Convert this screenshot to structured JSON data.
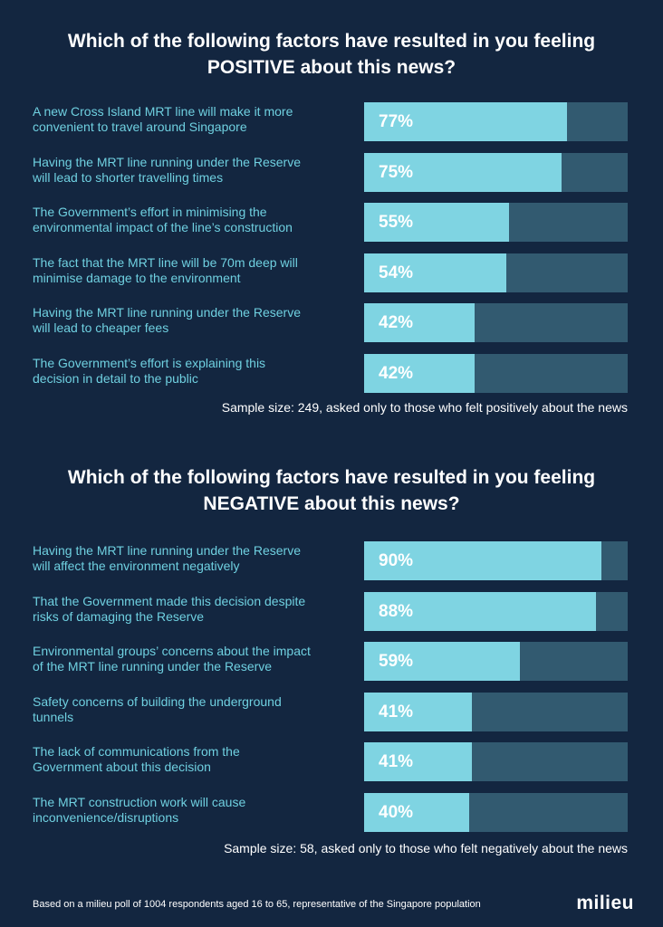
{
  "chart_data": [
    {
      "type": "bar",
      "orientation": "horizontal",
      "title_lines": [
        "Which of the following factors have resulted in you feeling",
        "POSITIVE about this news?"
      ],
      "categories": [
        [
          "A new Cross Island MRT line will make it more",
          "convenient to travel around Singapore"
        ],
        [
          "Having the MRT line running under the Reserve",
          "will lead to shorter travelling times"
        ],
        [
          "The Government’s effort in minimising the",
          "environmental impact of the line’s construction"
        ],
        [
          "The fact that the MRT line will be 70m deep will",
          "minimise damage to the environment"
        ],
        [
          "Having the MRT line running under the Reserve",
          "will lead to cheaper fees"
        ],
        [
          "The Government’s effort is explaining this",
          "decision in detail to the public"
        ]
      ],
      "values": [
        77,
        75,
        55,
        54,
        42,
        42
      ],
      "value_labels": [
        "77%",
        "75%",
        "55%",
        "54%",
        "42%",
        "42%"
      ],
      "xlim": [
        0,
        100
      ],
      "note": "Sample size: 249, asked only to those who felt positively about the news"
    },
    {
      "type": "bar",
      "orientation": "horizontal",
      "title_lines": [
        "Which of the following factors have resulted in you feeling",
        "NEGATIVE about this news?"
      ],
      "categories": [
        [
          "Having the MRT line running under the Reserve",
          "will affect the environment negatively"
        ],
        [
          "That the Government made this decision despite",
          "risks of damaging the Reserve"
        ],
        [
          "Environmental groups’ concerns about the impact",
          "of the MRT line running under the Reserve"
        ],
        [
          "Safety concerns of building the underground",
          "tunnels"
        ],
        [
          "The lack of communications from the",
          "Government about this decision"
        ],
        [
          "The MRT construction work will cause",
          "inconvenience/disruptions"
        ]
      ],
      "values": [
        90,
        88,
        59,
        41,
        41,
        40
      ],
      "value_labels": [
        "90%",
        "88%",
        "59%",
        "41%",
        "41%",
        "40%"
      ],
      "xlim": [
        0,
        100
      ],
      "note": "Sample size: 58, asked only to those who felt negatively about the news"
    }
  ],
  "footer": {
    "note": "Based on a milieu poll of 1004 respondents aged 16 to 65, representative of the Singapore population",
    "brand": "milieu"
  },
  "colors": {
    "background": "#132640",
    "bar_fill": "#7fd4e2",
    "bar_track": "#325a70",
    "label_text": "#6fd0e0"
  }
}
